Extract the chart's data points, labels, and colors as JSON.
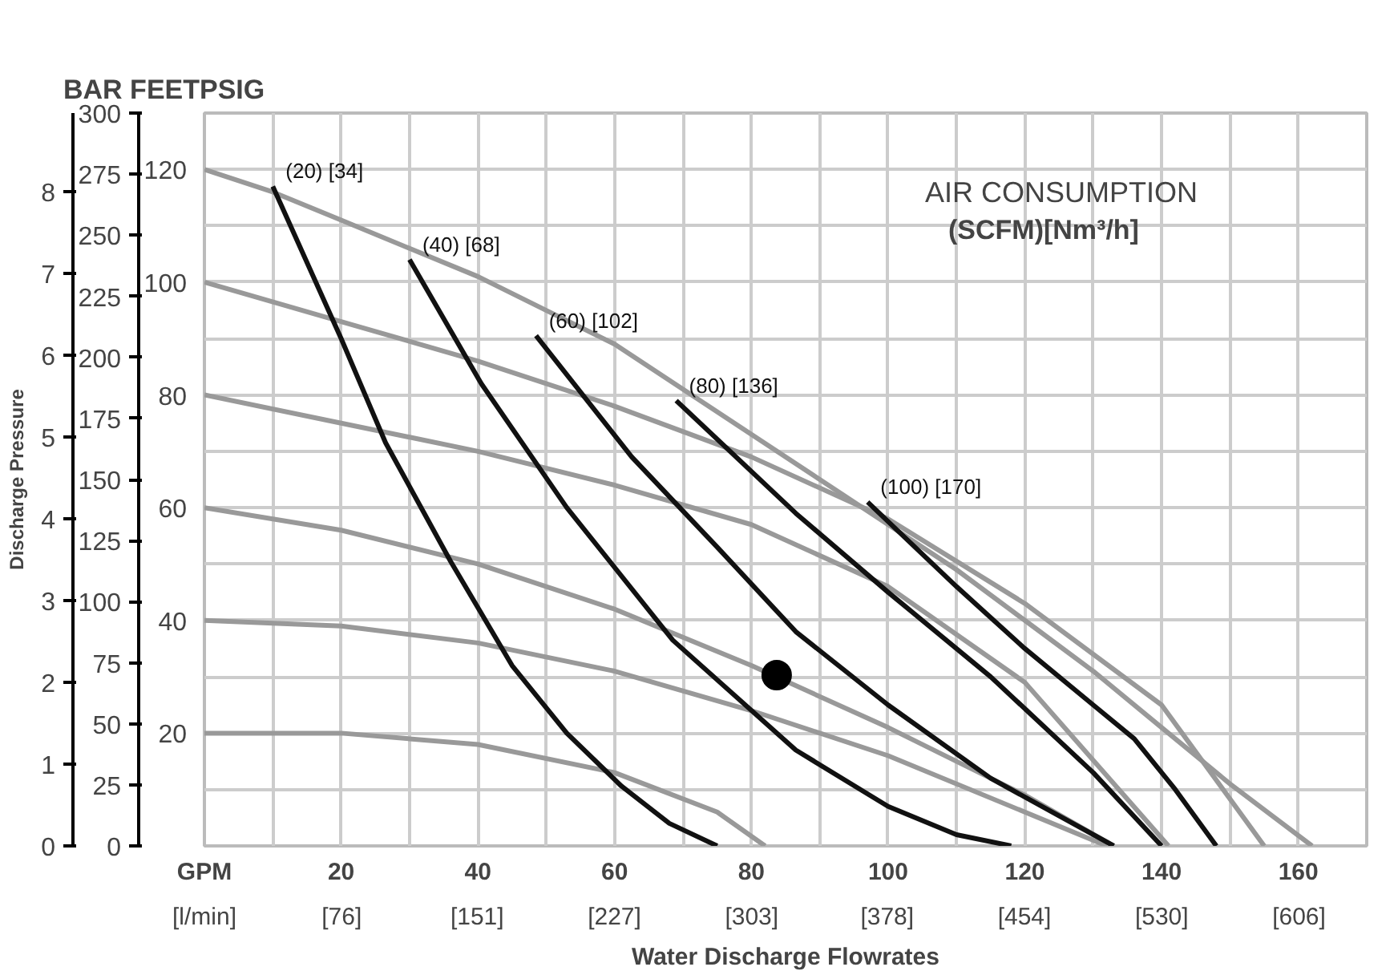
{
  "chart_data": {
    "type": "line",
    "xlabel": "Water Discharge Flowrates",
    "y3label": "Discharge Pressure",
    "annotations": [
      "BAR FEETPSIG",
      "AIR CONSUMPTION",
      "(SCFM)[Nm³/h]"
    ],
    "xlim": [
      0,
      170
    ],
    "xticks": [
      {
        "value": 0,
        "label": "GPM"
      },
      {
        "value": 10,
        "label": null
      },
      20,
      {
        "value": 30,
        "label": null
      },
      40,
      {
        "value": 50,
        "label": null
      },
      60,
      {
        "value": 70,
        "label": null
      },
      80,
      {
        "value": 90,
        "label": null
      },
      100,
      {
        "value": 110,
        "label": null
      },
      120,
      {
        "value": 130,
        "label": null
      },
      140,
      {
        "value": 150,
        "label": null
      },
      160,
      {
        "value": 170,
        "label": null
      }
    ],
    "x2lim": [
      0,
      643.5
    ],
    "x2ticks": [
      {
        "value": 0,
        "label": "[l/min]"
      },
      {
        "value": 76,
        "label": "[76]"
      },
      {
        "value": 151,
        "label": "[151]"
      },
      {
        "value": 227,
        "label": "[227]"
      },
      {
        "value": 303,
        "label": "[303]"
      },
      {
        "value": 378,
        "label": "[378]"
      },
      {
        "value": 454,
        "label": "[454]"
      },
      {
        "value": 530,
        "label": "[530]"
      },
      {
        "value": 606,
        "label": "[606]"
      }
    ],
    "ylim": [
      0,
      130
    ],
    "yticks": [
      {
        "value": 10,
        "label": null
      },
      20,
      {
        "value": 30,
        "label": null
      },
      40,
      {
        "value": 50,
        "label": null
      },
      60,
      {
        "value": 70,
        "label": null
      },
      80,
      {
        "value": 90,
        "label": null
      },
      100,
      {
        "value": 110,
        "label": null
      },
      120,
      {
        "value": 130,
        "label": null
      }
    ],
    "y2lim": [
      0,
      300
    ],
    "y2ticks": [
      0,
      25,
      50,
      75,
      100,
      125,
      150,
      175,
      200,
      225,
      250,
      275,
      300
    ],
    "y3lim": [
      0,
      8.96
    ],
    "y3ticks": [
      0,
      1,
      2,
      3,
      4,
      5,
      6,
      7,
      8
    ],
    "grid": true,
    "series": [
      {
        "color": "#999999",
        "x": [
          0,
          10,
          20,
          30,
          40,
          50,
          60,
          70,
          80,
          90,
          100,
          110,
          120,
          130,
          140,
          150,
          162
        ],
        "values": [
          120,
          116,
          111,
          106,
          101,
          95,
          89,
          81,
          73,
          65,
          57,
          49,
          40,
          31,
          21,
          11,
          0
        ]
      },
      {
        "color": "#999999",
        "x": [
          0,
          20,
          40,
          60,
          80,
          100,
          120,
          140,
          155
        ],
        "values": [
          100,
          93,
          86,
          78,
          69,
          58,
          43,
          25,
          0
        ]
      },
      {
        "color": "#999999",
        "x": [
          0,
          20,
          40,
          60,
          80,
          100,
          120,
          141
        ],
        "values": [
          80,
          75,
          70,
          64,
          57,
          46,
          29,
          0
        ]
      },
      {
        "color": "#999999",
        "x": [
          0,
          20,
          40,
          60,
          80,
          100,
          120,
          133
        ],
        "values": [
          60,
          56,
          50,
          42,
          32,
          21,
          9,
          0
        ]
      },
      {
        "color": "#999999",
        "x": [
          0,
          20,
          40,
          60,
          80,
          100,
          120,
          132
        ],
        "values": [
          40,
          39,
          36,
          31,
          24,
          16,
          6,
          0
        ]
      },
      {
        "color": "#999999",
        "x": [
          0,
          20,
          40,
          60,
          75,
          82
        ],
        "values": [
          20,
          20,
          18,
          13,
          6,
          0
        ]
      },
      {
        "name": "(20) [34]",
        "color": "#111111",
        "x": [
          10,
          20,
          26.5,
          36,
          45,
          53,
          61,
          68,
          75
        ],
        "values": [
          117,
          90,
          71.5,
          50.5,
          32,
          20,
          10.6,
          4,
          0
        ]
      },
      {
        "name": "(40) [68]",
        "color": "#111111",
        "x": [
          30,
          40.5,
          53,
          68.5,
          86.5,
          100,
          110,
          118
        ],
        "values": [
          104,
          82,
          60,
          36.5,
          17,
          7,
          2,
          0
        ]
      },
      {
        "name": "(60) [102]",
        "color": "#111111",
        "x": [
          48.5,
          62.5,
          75,
          86.5,
          100,
          115,
          133
        ],
        "values": [
          90.5,
          69,
          53,
          38,
          25,
          12,
          0
        ]
      },
      {
        "name": "(80) [136]",
        "color": "#111111",
        "x": [
          69,
          86.5,
          100,
          115,
          130,
          140
        ],
        "values": [
          79,
          59,
          45,
          30,
          13,
          0
        ]
      },
      {
        "name": "(100) [170]",
        "color": "#111111",
        "x": [
          97,
          110,
          120,
          130,
          136,
          142,
          148
        ],
        "values": [
          61,
          46,
          35,
          25,
          19,
          10,
          0
        ]
      },
      {
        "type": "scatter",
        "marker": "circle",
        "color": "#000000",
        "x": [
          83.7
        ],
        "values": [
          30.3
        ]
      }
    ]
  }
}
